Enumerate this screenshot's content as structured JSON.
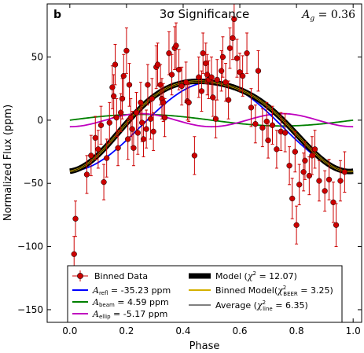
{
  "chart_data": {
    "type": "scatter",
    "panel_label": "b",
    "title": "3σ Significance",
    "ag_label": "A_g = 0.36",
    "xlabel": "Phase",
    "ylabel": "Normalized Flux (ppm)",
    "xlim": [
      -0.08,
      1.03
    ],
    "ylim": [
      -160,
      92
    ],
    "xticks": [
      0.0,
      0.2,
      0.4,
      0.6,
      0.8,
      1.0
    ],
    "xtick_labels": [
      "0.0",
      "0.2",
      "0.4",
      "0.6",
      "0.8",
      "1.0"
    ],
    "yticks": [
      -150,
      -100,
      -50,
      0,
      50
    ],
    "ytick_labels": [
      "−150",
      "−100",
      "−50",
      "0",
      "50"
    ],
    "grid": false,
    "legend_position": "lower-center",
    "components": {
      "A_refl_ppm": -35.23,
      "A_beam_ppm": 4.59,
      "A_ellip_ppm": -5.17,
      "offset_ppm": -5.0
    },
    "colors": {
      "data": "#cc0000",
      "refl": "#0000ff",
      "beam": "#008000",
      "ellip": "#bf00bf",
      "model": "#000000",
      "binned_model": "#d4b000",
      "average": "#000000"
    },
    "series": [
      {
        "name": "Binned Data",
        "points": [
          {
            "x": 0.015,
            "y": -106,
            "err": 14
          },
          {
            "x": 0.02,
            "y": -78,
            "err": 14
          },
          {
            "x": 0.06,
            "y": -43,
            "err": 15
          },
          {
            "x": 0.075,
            "y": -28,
            "err": 16
          },
          {
            "x": 0.09,
            "y": -14,
            "err": 17
          },
          {
            "x": 0.1,
            "y": -23,
            "err": 15
          },
          {
            "x": 0.11,
            "y": -4,
            "err": 15
          },
          {
            "x": 0.12,
            "y": -49,
            "err": 14
          },
          {
            "x": 0.13,
            "y": -30,
            "err": 15
          },
          {
            "x": 0.14,
            "y": -2,
            "err": 16
          },
          {
            "x": 0.15,
            "y": 26,
            "err": 17
          },
          {
            "x": 0.155,
            "y": 19,
            "err": 17
          },
          {
            "x": 0.16,
            "y": 44,
            "err": 16
          },
          {
            "x": 0.165,
            "y": 2,
            "err": 15
          },
          {
            "x": 0.17,
            "y": -22,
            "err": 14
          },
          {
            "x": 0.18,
            "y": 6,
            "err": 15
          },
          {
            "x": 0.185,
            "y": 17,
            "err": 16
          },
          {
            "x": 0.19,
            "y": 35,
            "err": 17
          },
          {
            "x": 0.2,
            "y": 55,
            "err": 18
          },
          {
            "x": 0.205,
            "y": -15,
            "err": 16
          },
          {
            "x": 0.21,
            "y": 28,
            "err": 17
          },
          {
            "x": 0.215,
            "y": 2,
            "err": 15
          },
          {
            "x": 0.22,
            "y": -7,
            "err": 14
          },
          {
            "x": 0.225,
            "y": -22,
            "err": 14
          },
          {
            "x": 0.235,
            "y": 6,
            "err": 16
          },
          {
            "x": 0.24,
            "y": -10,
            "err": 17
          },
          {
            "x": 0.25,
            "y": 14,
            "err": 16
          },
          {
            "x": 0.255,
            "y": -2,
            "err": 15
          },
          {
            "x": 0.26,
            "y": -15,
            "err": 14
          },
          {
            "x": 0.27,
            "y": -7,
            "err": 15
          },
          {
            "x": 0.275,
            "y": 28,
            "err": 16
          },
          {
            "x": 0.285,
            "y": 1,
            "err": 16
          },
          {
            "x": 0.29,
            "y": 17,
            "err": 16
          },
          {
            "x": 0.295,
            "y": -9,
            "err": 15
          },
          {
            "x": 0.305,
            "y": 42,
            "err": 17
          },
          {
            "x": 0.31,
            "y": 44,
            "err": 17
          },
          {
            "x": 0.32,
            "y": 28,
            "err": 16
          },
          {
            "x": 0.325,
            "y": 17,
            "err": 16
          },
          {
            "x": 0.33,
            "y": 14,
            "err": 15
          },
          {
            "x": 0.335,
            "y": 2,
            "err": 15
          },
          {
            "x": 0.35,
            "y": 53,
            "err": 17
          },
          {
            "x": 0.36,
            "y": 36,
            "err": 16
          },
          {
            "x": 0.37,
            "y": 57,
            "err": 17
          },
          {
            "x": 0.375,
            "y": 59,
            "err": 18
          },
          {
            "x": 0.385,
            "y": 40,
            "err": 16
          },
          {
            "x": 0.395,
            "y": 27,
            "err": 15
          },
          {
            "x": 0.41,
            "y": 30,
            "err": 16
          },
          {
            "x": 0.415,
            "y": 15,
            "err": 15
          },
          {
            "x": 0.42,
            "y": 14,
            "err": 15
          },
          {
            "x": 0.44,
            "y": -28,
            "err": 15
          },
          {
            "x": 0.455,
            "y": 34,
            "err": 16
          },
          {
            "x": 0.465,
            "y": 23,
            "err": 16
          },
          {
            "x": 0.47,
            "y": 53,
            "err": 16
          },
          {
            "x": 0.48,
            "y": 45,
            "err": 16
          },
          {
            "x": 0.485,
            "y": 36,
            "err": 16
          },
          {
            "x": 0.49,
            "y": 32,
            "err": 15
          },
          {
            "x": 0.5,
            "y": 34,
            "err": 16
          },
          {
            "x": 0.505,
            "y": 18,
            "err": 15
          },
          {
            "x": 0.515,
            "y": 1,
            "err": 15
          },
          {
            "x": 0.52,
            "y": 32,
            "err": 16
          },
          {
            "x": 0.535,
            "y": 39,
            "err": 16
          },
          {
            "x": 0.54,
            "y": 50,
            "err": 16
          },
          {
            "x": 0.55,
            "y": 30,
            "err": 15
          },
          {
            "x": 0.56,
            "y": 16,
            "err": 15
          },
          {
            "x": 0.565,
            "y": 57,
            "err": 16
          },
          {
            "x": 0.575,
            "y": 65,
            "err": 17
          },
          {
            "x": 0.58,
            "y": 80,
            "err": 16
          },
          {
            "x": 0.59,
            "y": 49,
            "err": 15
          },
          {
            "x": 0.6,
            "y": 38,
            "err": 15
          },
          {
            "x": 0.61,
            "y": 35,
            "err": 16
          },
          {
            "x": 0.625,
            "y": 53,
            "err": 16
          },
          {
            "x": 0.64,
            "y": 10,
            "err": 15
          },
          {
            "x": 0.655,
            "y": -3,
            "err": 15
          },
          {
            "x": 0.665,
            "y": 39,
            "err": 16
          },
          {
            "x": 0.68,
            "y": -6,
            "err": 15
          },
          {
            "x": 0.695,
            "y": -1,
            "err": 15
          },
          {
            "x": 0.7,
            "y": -16,
            "err": 14
          },
          {
            "x": 0.715,
            "y": -4,
            "err": 15
          },
          {
            "x": 0.73,
            "y": -23,
            "err": 15
          },
          {
            "x": 0.745,
            "y": -9,
            "err": 15
          },
          {
            "x": 0.76,
            "y": -10,
            "err": 15
          },
          {
            "x": 0.775,
            "y": -36,
            "err": 15
          },
          {
            "x": 0.785,
            "y": -62,
            "err": 16
          },
          {
            "x": 0.795,
            "y": -25,
            "err": 16
          },
          {
            "x": 0.8,
            "y": -83,
            "err": 15
          },
          {
            "x": 0.81,
            "y": -51,
            "err": 16
          },
          {
            "x": 0.825,
            "y": -41,
            "err": 15
          },
          {
            "x": 0.83,
            "y": -32,
            "err": 15
          },
          {
            "x": 0.845,
            "y": -44,
            "err": 15
          },
          {
            "x": 0.855,
            "y": -28,
            "err": 15
          },
          {
            "x": 0.865,
            "y": -23,
            "err": 15
          },
          {
            "x": 0.88,
            "y": -48,
            "err": 16
          },
          {
            "x": 0.9,
            "y": -56,
            "err": 16
          },
          {
            "x": 0.915,
            "y": -47,
            "err": 16
          },
          {
            "x": 0.93,
            "y": -65,
            "err": 16
          },
          {
            "x": 0.94,
            "y": -83,
            "err": 17
          },
          {
            "x": 0.955,
            "y": -48,
            "err": 16
          },
          {
            "x": 0.97,
            "y": -41,
            "err": 16
          }
        ]
      }
    ]
  },
  "legend": {
    "binned_data": "Binned Data",
    "refl_sym": "A",
    "refl_sub": "refl",
    "refl_val": " = -35.23 ppm",
    "beam_sym": "A",
    "beam_sub": "beam",
    "beam_val": " =   4.59 ppm",
    "ellip_sym": "A",
    "ellip_sub": "ellip",
    "ellip_val": " =  -5.17 ppm",
    "model_pre": "Model (",
    "model_chi": "χ",
    "model_sup": "2",
    "model_post": " = 12.07)",
    "binned_pre": "Binned Model(",
    "binned_chi": "χ",
    "binned_sup": "2",
    "binned_sub": "BEER",
    "binned_post": " =  3.25)",
    "avg_pre": "Average (",
    "avg_chi": "χ",
    "avg_sup": "2",
    "avg_sub": "line",
    "avg_post": " =  6.35)"
  }
}
